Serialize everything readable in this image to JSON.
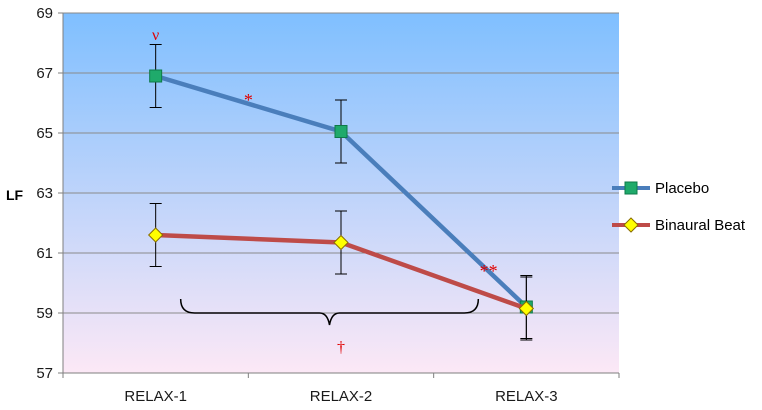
{
  "chart_data": {
    "type": "line",
    "categories": [
      "RELAX-1",
      "RELAX-2",
      "RELAX-3"
    ],
    "series": [
      {
        "name": "Placebo",
        "values": [
          66.9,
          65.05,
          59.2
        ],
        "error": [
          1.05,
          1.05,
          1.05
        ],
        "color": "#4a7ebb",
        "marker": "square",
        "marker_color": "#1faa6b"
      },
      {
        "name": "Binaural Beat",
        "values": [
          61.6,
          61.35,
          59.15
        ],
        "error": [
          1.05,
          1.05,
          1.05
        ],
        "color": "#be4b48",
        "marker": "diamond",
        "marker_color": "#ffff00"
      }
    ],
    "ylabel": "LF",
    "xlabel": "",
    "ylim": [
      57,
      69
    ],
    "yticks": [
      "57",
      "59",
      "61",
      "63",
      "65",
      "67",
      "69"
    ],
    "grid": true,
    "legend_position": "right",
    "background_gradient": [
      "#7fbfff",
      "#fce8f6"
    ],
    "annotations": [
      {
        "text": "ν",
        "x": "RELAX-1",
        "y": 68.3
      },
      {
        "text": "*",
        "x_between": [
          "RELAX-1",
          "RELAX-2"
        ],
        "y": 66.1
      },
      {
        "text": "**",
        "x_between": [
          "RELAX-2",
          "RELAX-3"
        ],
        "y": 60.4
      },
      {
        "text": "†",
        "x": "RELAX-2",
        "y": 57.9
      }
    ],
    "brace": {
      "from": "RELAX-1",
      "to": "RELAX-3",
      "y": 59
    }
  }
}
